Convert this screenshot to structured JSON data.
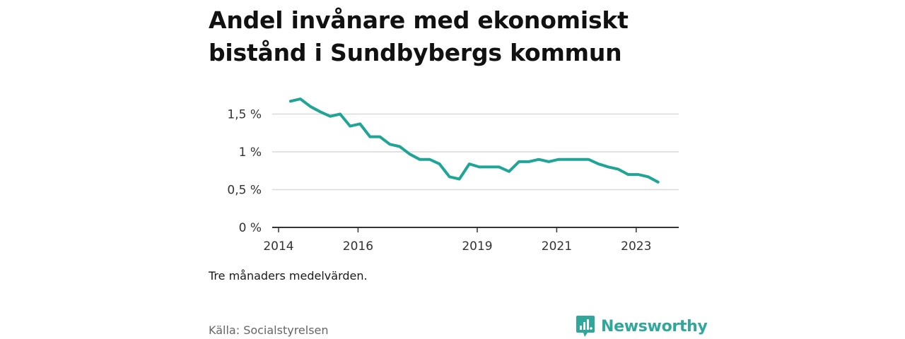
{
  "title": "Andel invånare med ekonomiskt bistånd i Sundbybergs kommun",
  "note": "Tre månaders medelvärden.",
  "source": "Källa: Socialstyrelsen",
  "logo_text": "Newsworthy",
  "colors": {
    "line": "#1fa595",
    "grid": "#d9d9d9",
    "axis": "#333333",
    "logo": "#2fa79b"
  },
  "chart_data": {
    "type": "line",
    "title": "Andel invånare med ekonomiskt bistånd i Sundbybergs kommun",
    "xlabel": "",
    "ylabel": "",
    "xlim": [
      2014,
      2024.5
    ],
    "ylim": [
      0,
      2.0
    ],
    "y_ticks": [
      {
        "value": 0,
        "label": "0 %"
      },
      {
        "value": 0.5,
        "label": "0,5 %"
      },
      {
        "value": 1,
        "label": "1 %"
      },
      {
        "value": 1.5,
        "label": "1,5 %"
      }
    ],
    "x_ticks": [
      {
        "value": 2014,
        "label": "2014"
      },
      {
        "value": 2016,
        "label": "2016"
      },
      {
        "value": 2019,
        "label": "2019"
      },
      {
        "value": 2021,
        "label": "2021"
      },
      {
        "value": 2023,
        "label": "2023"
      }
    ],
    "grid": true,
    "series": [
      {
        "x": [
          2014.3,
          2014.55,
          2014.8,
          2015.05,
          2015.3,
          2015.55,
          2015.8,
          2016.05,
          2016.3,
          2016.55,
          2016.8,
          2017.05,
          2017.3,
          2017.55,
          2017.8,
          2018.05,
          2018.3,
          2018.55,
          2018.8,
          2019.05,
          2019.3,
          2019.55,
          2019.8,
          2020.05,
          2020.3,
          2020.55,
          2020.8,
          2021.05,
          2021.3,
          2021.55,
          2021.8,
          2022.05,
          2022.3,
          2022.55,
          2022.8,
          2023.05,
          2023.3,
          2023.55
        ],
        "values": [
          1.67,
          1.7,
          1.6,
          1.53,
          1.47,
          1.5,
          1.34,
          1.37,
          1.2,
          1.2,
          1.1,
          1.07,
          0.97,
          0.9,
          0.9,
          0.84,
          0.67,
          0.64,
          0.84,
          0.8,
          0.8,
          0.8,
          0.74,
          0.87,
          0.87,
          0.9,
          0.87,
          0.9,
          0.9,
          0.9,
          0.9,
          0.84,
          0.8,
          0.77,
          0.7,
          0.7,
          0.67,
          0.6
        ]
      }
    ]
  }
}
